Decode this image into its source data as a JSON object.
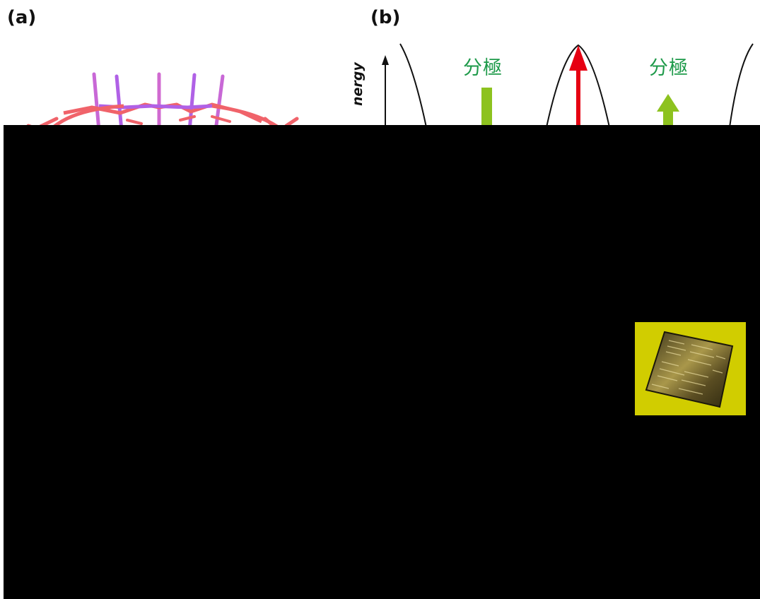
{
  "panels": {
    "a": {
      "label": "(a)"
    },
    "b": {
      "label": "(b)",
      "y_axis_label": "nergy",
      "polarization_labels": [
        "分極",
        "分極"
      ]
    }
  },
  "colors": {
    "polarization_green": "#8dc21f",
    "polarization_text": "#1e9a4a",
    "arrow_red": "#e60012",
    "lattice_red": "#f0636a",
    "lattice_purple": "#b061e6",
    "curve": "#111111",
    "redaction": "#000000",
    "photo_background": "#d6d200"
  }
}
